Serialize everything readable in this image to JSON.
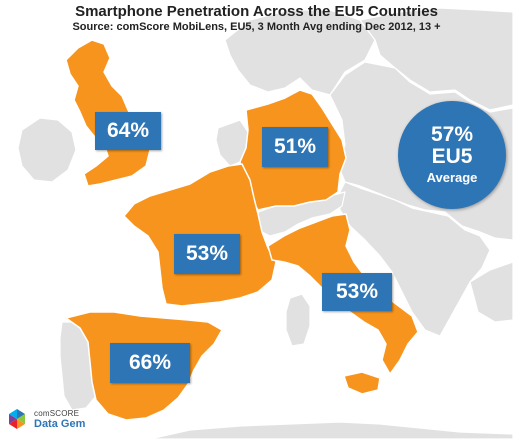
{
  "header": {
    "title": "Smartphone Penetration Across the EU5 Countries",
    "source": "Source: comScore MobiLens, EU5, 3 Month Avg ending Dec 2012, 13 +"
  },
  "countries": [
    {
      "name": "United Kingdom",
      "penetration": "64%",
      "percent": 64
    },
    {
      "name": "Germany",
      "penetration": "51%",
      "percent": 51
    },
    {
      "name": "France",
      "penetration": "53%",
      "percent": 53
    },
    {
      "name": "Italy",
      "penetration": "53%",
      "percent": 53
    },
    {
      "name": "Spain",
      "penetration": "66%",
      "percent": 66
    }
  ],
  "average": {
    "value": "57%",
    "region": "EU5",
    "caption": "Average"
  },
  "brand": {
    "name": "comSCORE",
    "product": "Data Gem"
  },
  "colors": {
    "highlight_country": "#f7941d",
    "other_land": "#e1e1e1",
    "sea": "#ffffff",
    "label_fill": "#2e75b6",
    "label_text": "#ffffff"
  },
  "icons": {
    "brand_mark": "comscore-mark-icon"
  }
}
